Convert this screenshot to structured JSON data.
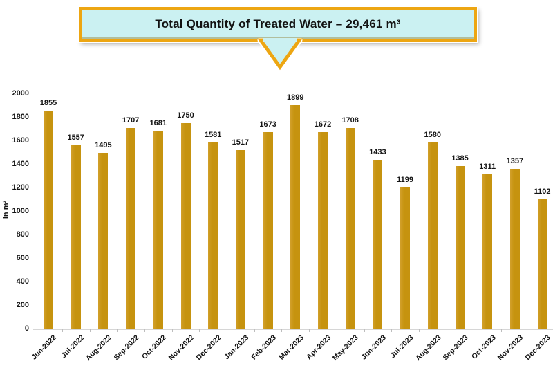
{
  "banner": {
    "title": "Total Quantity of Treated Water – 29,461 m³",
    "bg_color": "#CBF1F2",
    "border_color": "#EDA612"
  },
  "chart_data": {
    "type": "bar",
    "title": "Total Quantity of Treated Water – 29,461 m³",
    "xlabel": "",
    "ylabel": "In m³",
    "ylim": [
      0,
      2000
    ],
    "ytick_step": 200,
    "grid": false,
    "legend": "none",
    "bar_color": "#C6930F",
    "categories": [
      "Jun-2022",
      "Jul-2022",
      "Aug-2022",
      "Sep-2022",
      "Oct-2022",
      "Nov-2022",
      "Dec-2022",
      "Jan-2023",
      "Feb-2023",
      "Mar-2023",
      "Apr-2023",
      "May-2023",
      "Jun-2023",
      "Jul-2023",
      "Aug-2023",
      "Sep-2023",
      "Oct-2023",
      "Nov-2023",
      "Dec-2023"
    ],
    "values": [
      1855,
      1557,
      1495,
      1707,
      1681,
      1750,
      1581,
      1517,
      1673,
      1899,
      1672,
      1708,
      1433,
      1199,
      1580,
      1385,
      1311,
      1357,
      1102
    ]
  }
}
